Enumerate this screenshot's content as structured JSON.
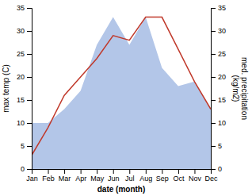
{
  "chart_data": {
    "type": "line",
    "categories": [
      "Jan",
      "Feb",
      "Mar",
      "Apr",
      "May",
      "Jun",
      "Jul",
      "Aug",
      "Sep",
      "Oct",
      "Nov",
      "Dec"
    ],
    "series": [
      {
        "type": "area",
        "axis": "y2",
        "color": "#b3c6e8",
        "values": [
          10,
          10,
          13,
          17,
          27,
          33,
          27,
          33,
          22,
          18,
          19,
          13
        ]
      },
      {
        "type": "line",
        "color": "#c0392b",
        "values": [
          3,
          9,
          16,
          20,
          24,
          29,
          28,
          33,
          33,
          26,
          19,
          13
        ]
      }
    ],
    "xlabel": "date (month)",
    "ylabel": "max temp (C)",
    "y2label": "med. precipitation\n(kg/m2)",
    "ylim": [
      0,
      35
    ],
    "yticks": [
      0,
      5,
      10,
      15,
      20,
      25,
      30,
      35
    ],
    "y2lim": [
      0,
      35
    ],
    "y2ticks": [
      0,
      5,
      10,
      15,
      20,
      25,
      30,
      35
    ],
    "grid": false
  }
}
